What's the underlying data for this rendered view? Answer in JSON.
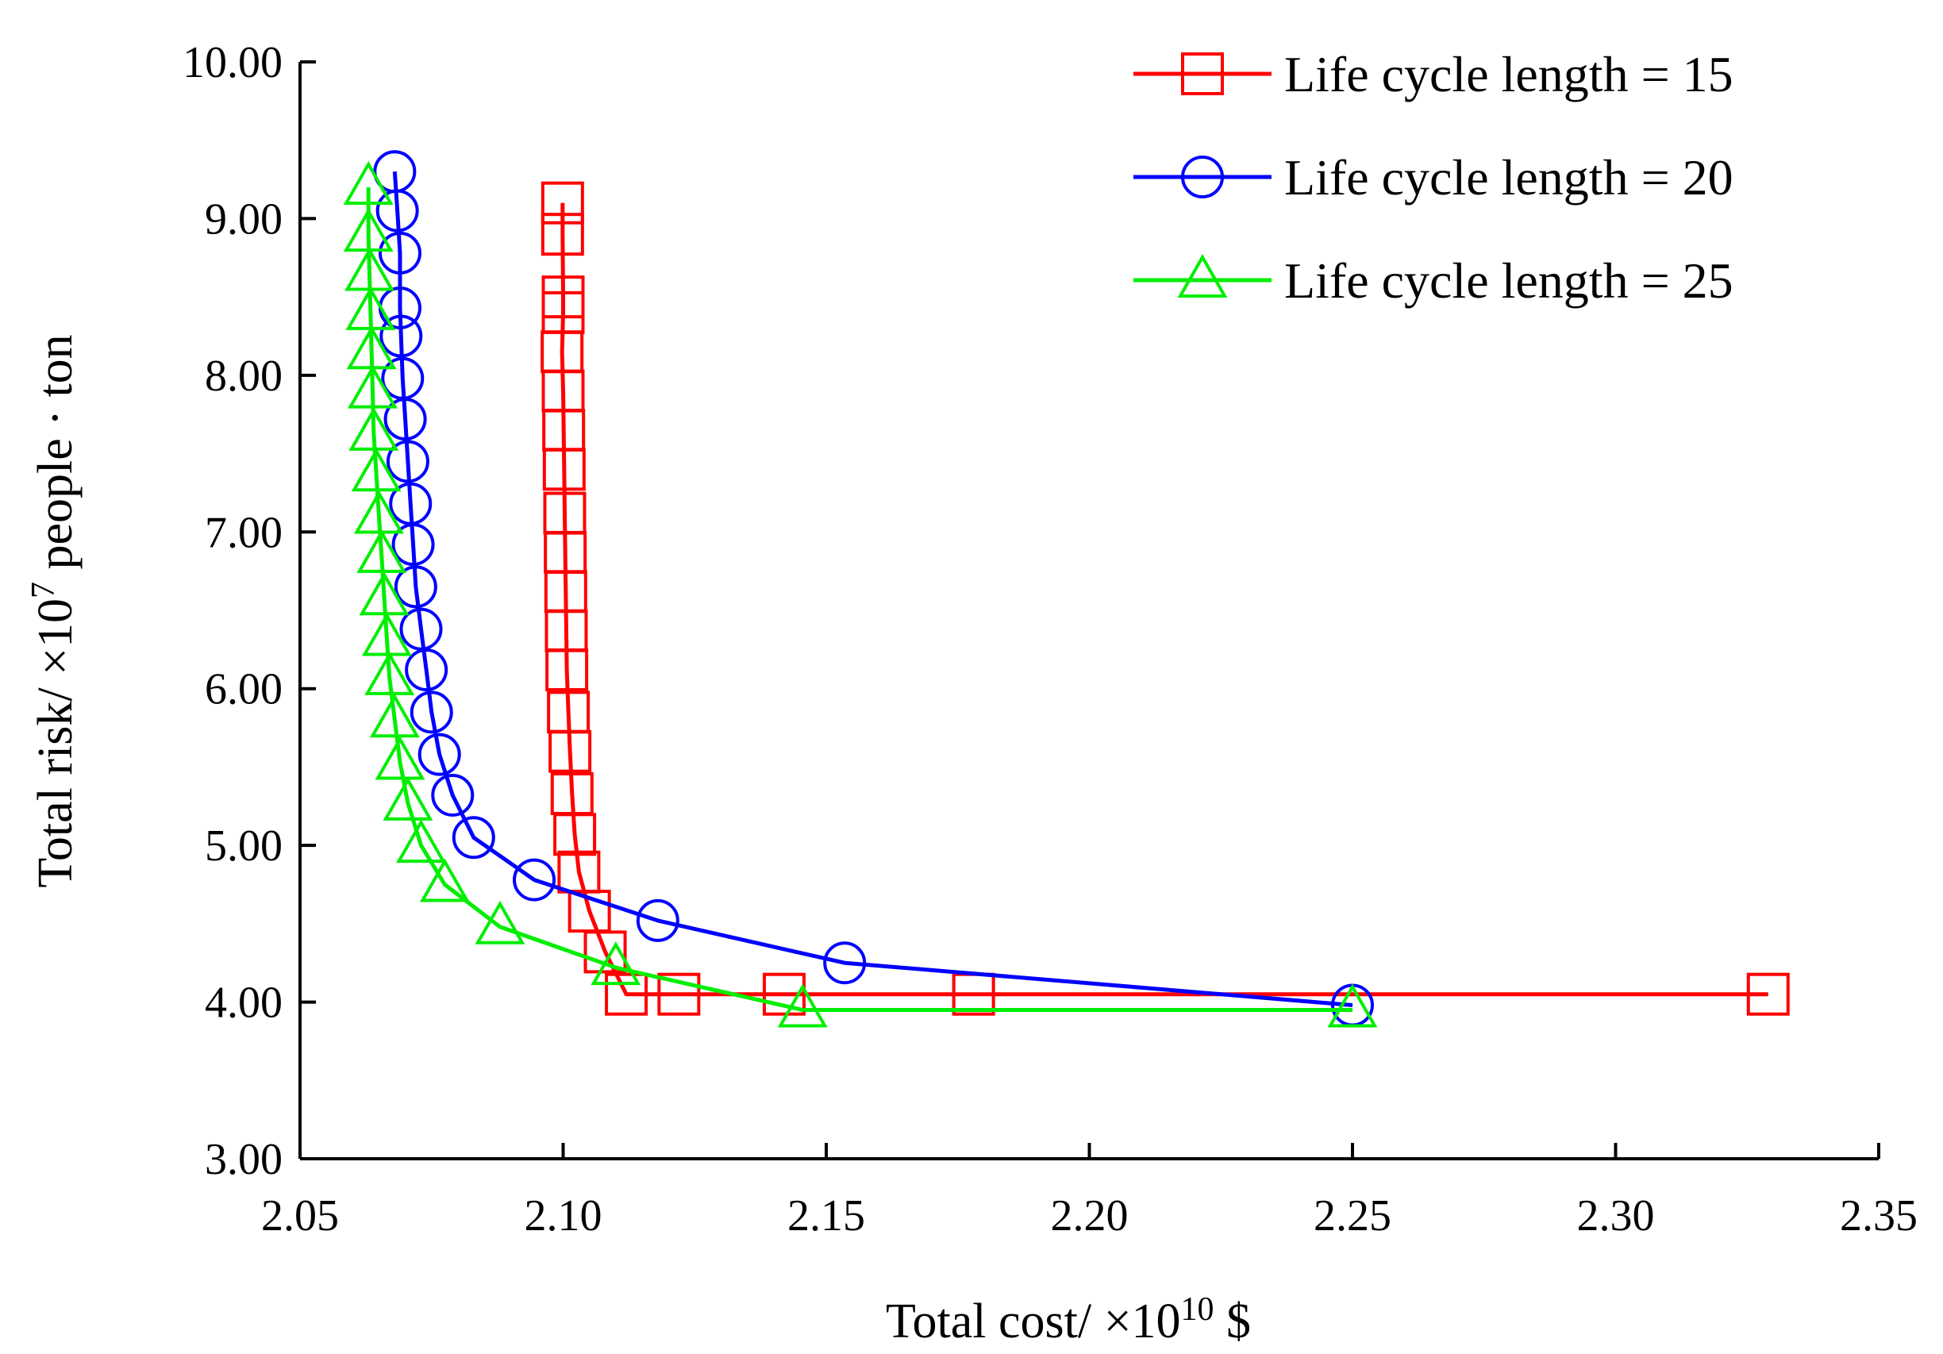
{
  "chart_data": {
    "type": "line",
    "title": "",
    "xlabel": "Total cost/ ×10",
    "xlabel_sup": "10",
    "xlabel_tail": " $",
    "ylabel": "Total risk/ ×10",
    "ylabel_sup": "7",
    "ylabel_tail": " people · ton",
    "xlim": [
      2.05,
      2.35
    ],
    "ylim": [
      3.0,
      10.0
    ],
    "xticks": [
      "2.05",
      "2.10",
      "2.15",
      "2.20",
      "2.25",
      "2.30",
      "2.35"
    ],
    "yticks": [
      "3.00",
      "4.00",
      "5.00",
      "6.00",
      "7.00",
      "8.00",
      "9.00",
      "10.00"
    ],
    "legend_position": "top-right",
    "series": [
      {
        "name": "Life cycle length = 15",
        "color": "#ff0000",
        "marker": "square",
        "x": [
          2.0999,
          2.0999,
          2.1,
          2.1,
          2.0998,
          2.1,
          2.1001,
          2.1002,
          2.1003,
          2.1004,
          2.1005,
          2.1006,
          2.1007,
          2.101,
          2.1013,
          2.1017,
          2.1022,
          2.103,
          2.105,
          2.108,
          2.112,
          2.122,
          2.142,
          2.178,
          2.329
        ],
        "y": [
          9.1,
          8.9,
          8.5,
          8.4,
          8.15,
          7.9,
          7.65,
          7.4,
          7.12,
          6.87,
          6.62,
          6.37,
          6.12,
          5.85,
          5.6,
          5.33,
          5.07,
          4.83,
          4.58,
          4.32,
          4.05,
          4.05,
          4.05,
          4.05,
          4.05
        ]
      },
      {
        "name": "Life cycle length = 20",
        "color": "#0000ff",
        "marker": "circle",
        "x": [
          2.068,
          2.0685,
          2.069,
          2.069,
          2.0692,
          2.0695,
          2.07,
          2.0705,
          2.071,
          2.0715,
          2.072,
          2.073,
          2.074,
          2.075,
          2.0765,
          2.079,
          2.083,
          2.0945,
          2.118,
          2.1535,
          2.25
        ],
        "y": [
          9.3,
          9.05,
          8.78,
          8.43,
          8.25,
          7.98,
          7.72,
          7.45,
          7.18,
          6.92,
          6.65,
          6.38,
          6.12,
          5.85,
          5.58,
          5.32,
          5.05,
          4.78,
          4.52,
          4.25,
          3.98
        ]
      },
      {
        "name": "Life cycle length = 25",
        "color": "#00ee00",
        "marker": "triangle",
        "x": [
          2.063,
          2.063,
          2.0632,
          2.0634,
          2.0636,
          2.0638,
          2.064,
          2.0645,
          2.065,
          2.0655,
          2.066,
          2.0665,
          2.067,
          2.068,
          2.069,
          2.0705,
          2.073,
          2.0775,
          2.088,
          2.11,
          2.1455,
          2.25
        ],
        "y": [
          9.2,
          8.9,
          8.65,
          8.4,
          8.15,
          7.9,
          7.63,
          7.37,
          7.1,
          6.85,
          6.58,
          6.32,
          6.07,
          5.8,
          5.53,
          5.27,
          5.0,
          4.75,
          4.48,
          4.22,
          3.95,
          3.95
        ]
      }
    ]
  }
}
